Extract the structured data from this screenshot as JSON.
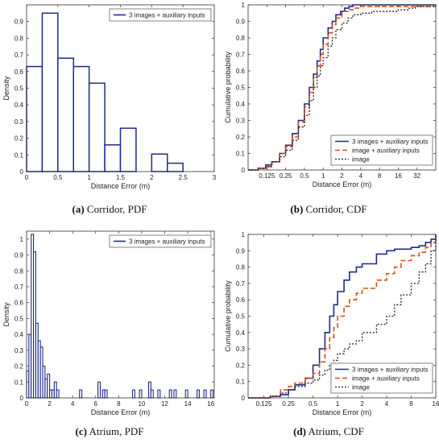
{
  "chart_data": [
    {
      "id": "a",
      "type": "histogram",
      "caption_letter": "(a)",
      "caption_text": "Corridor, PDF",
      "xlabel": "Distance Error (m)",
      "ylabel": "Density",
      "xlim": [
        0,
        3
      ],
      "ylim": [
        0,
        1.0
      ],
      "xticks": [
        0,
        0.5,
        1,
        1.5,
        2,
        2.5,
        3
      ],
      "xtick_labels": [
        "0",
        "0.5",
        "1",
        "1.5",
        "2",
        "2.5",
        "3"
      ],
      "yticks": [
        0,
        0.1,
        0.2,
        0.3,
        0.4,
        0.5,
        0.6,
        0.7,
        0.8,
        0.9
      ],
      "ytick_labels": [
        "0",
        "0.1",
        "0.2",
        "0.3",
        "0.4",
        "0.5",
        "0.6",
        "0.7",
        "0.8",
        "0.9"
      ],
      "bin_width": 0.25,
      "bin_starts": [
        0,
        0.25,
        0.5,
        0.75,
        1.0,
        1.25,
        1.5,
        1.75,
        2.0,
        2.25
      ],
      "values": [
        0.63,
        0.95,
        0.68,
        0.63,
        0.53,
        0.16,
        0.26,
        0.0,
        0.105,
        0.05
      ],
      "color": "#1f2a8c",
      "legend": [
        "3 images + auxiliary inputs"
      ],
      "legend_position": "top-right",
      "grid": false
    },
    {
      "id": "b",
      "type": "line",
      "xscale": "log2",
      "caption_letter": "(b)",
      "caption_text": "Corridor, CDF",
      "xlabel": "Distance Error (m)",
      "ylabel": "Cumulative probability",
      "xlim": [
        0.0625,
        64
      ],
      "ylim": [
        0,
        1.0
      ],
      "xticks": [
        0.125,
        0.25,
        0.5,
        1,
        2,
        4,
        8,
        16,
        32
      ],
      "xtick_labels": [
        "0.125",
        "0.25",
        "0.5",
        "1",
        "2",
        "4",
        "8",
        "16",
        "32"
      ],
      "yticks": [
        0,
        0.1,
        0.2,
        0.3,
        0.4,
        0.5,
        0.6,
        0.7,
        0.8,
        0.9,
        1
      ],
      "ytick_labels": [
        "0",
        "0.1",
        "0.2",
        "0.3",
        "0.4",
        "0.5",
        "0.6",
        "0.7",
        "0.8",
        "0.9",
        "1"
      ],
      "legend_position": "bottom-right",
      "grid": false,
      "series": [
        {
          "name": "3 images + auxiliary inputs",
          "color": "#1f2a8c",
          "dash": "",
          "width": 1.6,
          "x": [
            0.0625,
            0.09,
            0.12,
            0.15,
            0.2,
            0.25,
            0.32,
            0.4,
            0.5,
            0.6,
            0.7,
            0.8,
            0.9,
            1.0,
            1.2,
            1.4,
            1.6,
            1.9,
            2.2,
            2.6,
            3.0,
            64
          ],
          "y": [
            0.0,
            0.01,
            0.03,
            0.05,
            0.1,
            0.15,
            0.22,
            0.3,
            0.4,
            0.5,
            0.58,
            0.66,
            0.73,
            0.8,
            0.86,
            0.9,
            0.94,
            0.96,
            0.98,
            0.99,
            1.0,
            1.0
          ]
        },
        {
          "name": "image + auxiliary inputs",
          "color": "#d4501a",
          "dash": "6,3",
          "width": 1.6,
          "x": [
            0.0625,
            0.09,
            0.12,
            0.15,
            0.2,
            0.25,
            0.32,
            0.4,
            0.5,
            0.6,
            0.7,
            0.8,
            0.9,
            1.0,
            1.2,
            1.4,
            1.6,
            2.0,
            2.5,
            3.0,
            4.0,
            16,
            64
          ],
          "y": [
            0.0,
            0.01,
            0.02,
            0.05,
            0.1,
            0.14,
            0.2,
            0.29,
            0.38,
            0.47,
            0.56,
            0.63,
            0.7,
            0.76,
            0.83,
            0.88,
            0.92,
            0.96,
            0.97,
            0.98,
            0.99,
            0.99,
            0.99
          ]
        },
        {
          "name": "image",
          "color": "#222222",
          "dash": "2,2",
          "width": 1.3,
          "x": [
            0.0625,
            0.09,
            0.12,
            0.15,
            0.2,
            0.25,
            0.32,
            0.4,
            0.5,
            0.6,
            0.7,
            0.8,
            0.9,
            1.0,
            1.2,
            1.4,
            1.6,
            2.0,
            2.5,
            3.0,
            4.0,
            6.0,
            8.0,
            16,
            24,
            30,
            48,
            64
          ],
          "y": [
            0.0,
            0.01,
            0.02,
            0.05,
            0.08,
            0.12,
            0.18,
            0.26,
            0.33,
            0.42,
            0.5,
            0.57,
            0.63,
            0.68,
            0.75,
            0.8,
            0.85,
            0.89,
            0.92,
            0.94,
            0.95,
            0.96,
            0.96,
            0.97,
            0.98,
            0.99,
            0.99,
            1.0
          ]
        }
      ]
    },
    {
      "id": "c",
      "type": "histogram",
      "caption_letter": "(c)",
      "caption_text": "Atrium, PDF",
      "xlabel": "Distance Error (m)",
      "ylabel": "Density",
      "xlim": [
        0,
        16.3
      ],
      "ylim": [
        0,
        1.05
      ],
      "xticks": [
        0,
        2,
        4,
        6,
        8,
        10,
        12,
        14,
        16
      ],
      "xtick_labels": [
        "0",
        "2",
        "4",
        "6",
        "8",
        "10",
        "12",
        "14",
        "16"
      ],
      "yticks": [
        0,
        0.1,
        0.2,
        0.3,
        0.4,
        0.5,
        0.6,
        0.7,
        0.8,
        0.9,
        1
      ],
      "ytick_labels": [
        "0",
        "0.1",
        "0.2",
        "0.3",
        "0.4",
        "0.5",
        "0.6",
        "0.7",
        "0.8",
        "0.9",
        "1"
      ],
      "bin_width": 0.2,
      "bin_starts": [
        0,
        0.2,
        0.4,
        0.6,
        0.8,
        1.0,
        1.2,
        1.4,
        1.6,
        1.8,
        2.0,
        2.2,
        2.4,
        2.6,
        4.6,
        6.2,
        6.6,
        6.8,
        9.2,
        9.8,
        10.6,
        10.8,
        11.4,
        12.4,
        12.8,
        13.8,
        14.8,
        15.4,
        16.0
      ],
      "values": [
        0.17,
        0.4,
        1.03,
        0.92,
        0.47,
        0.36,
        0.32,
        0.2,
        0.12,
        0.15,
        0.05,
        0.05,
        0.1,
        0.05,
        0.05,
        0.1,
        0.05,
        0.05,
        0.05,
        0.05,
        0.1,
        0.05,
        0.05,
        0.05,
        0.05,
        0.05,
        0.05,
        0.05,
        0.05
      ],
      "color": "#1f2a8c",
      "legend": [
        "3 images + auxiliary inputs"
      ],
      "legend_position": "top-right",
      "grid": false
    },
    {
      "id": "d",
      "type": "line",
      "xscale": "log2",
      "caption_letter": "(d)",
      "caption_text": "Atrium, CDF",
      "xlabel": "Distance Error (m)",
      "ylabel": "Cumulative probability",
      "xlim": [
        0.08,
        16
      ],
      "ylim": [
        0,
        1.0
      ],
      "xticks": [
        0.125,
        0.25,
        0.5,
        1,
        2,
        4,
        8,
        16
      ],
      "xtick_labels": [
        "0.125",
        "0.25",
        "0.5",
        "1",
        "2",
        "4",
        "8",
        "16"
      ],
      "yticks": [
        0,
        0.1,
        0.2,
        0.3,
        0.4,
        0.5,
        0.6,
        0.7,
        0.8,
        0.9,
        1
      ],
      "ytick_labels": [
        "0",
        "0.1",
        "0.2",
        "0.3",
        "0.4",
        "0.5",
        "0.6",
        "0.7",
        "0.8",
        "0.9",
        "1"
      ],
      "legend_position": "bottom-right",
      "grid": false,
      "series": [
        {
          "name": "3 images + auxiliary inputs",
          "color": "#1f2a8c",
          "dash": "",
          "width": 1.6,
          "x": [
            0.08,
            0.15,
            0.2,
            0.25,
            0.3,
            0.4,
            0.5,
            0.6,
            0.7,
            0.8,
            0.9,
            1.0,
            1.2,
            1.4,
            1.7,
            2.0,
            3.0,
            4.0,
            5.0,
            6.0,
            8.0,
            10.0,
            12.0,
            14.0,
            16.0
          ],
          "y": [
            0.0,
            0.01,
            0.02,
            0.05,
            0.08,
            0.12,
            0.2,
            0.3,
            0.4,
            0.5,
            0.57,
            0.65,
            0.72,
            0.77,
            0.8,
            0.82,
            0.88,
            0.9,
            0.91,
            0.91,
            0.92,
            0.93,
            0.95,
            0.97,
            1.0
          ]
        },
        {
          "name": "image + auxiliary inputs",
          "color": "#d4501a",
          "dash": "6,3",
          "width": 1.6,
          "x": [
            0.08,
            0.15,
            0.2,
            0.25,
            0.3,
            0.4,
            0.5,
            0.6,
            0.7,
            0.8,
            0.9,
            1.0,
            1.2,
            1.4,
            1.7,
            2.0,
            3.0,
            4.0,
            5.0,
            6.0,
            8.0,
            10.0,
            12.0,
            14.0,
            16.0
          ],
          "y": [
            0.0,
            0.01,
            0.05,
            0.07,
            0.09,
            0.12,
            0.15,
            0.22,
            0.3,
            0.37,
            0.43,
            0.5,
            0.56,
            0.6,
            0.64,
            0.67,
            0.72,
            0.76,
            0.8,
            0.84,
            0.87,
            0.89,
            0.92,
            0.95,
            1.0
          ]
        },
        {
          "name": "image",
          "color": "#222222",
          "dash": "2,2",
          "width": 1.3,
          "x": [
            0.08,
            0.15,
            0.2,
            0.25,
            0.3,
            0.4,
            0.5,
            0.6,
            0.7,
            0.8,
            0.9,
            1.0,
            1.2,
            1.4,
            1.7,
            2.0,
            3.0,
            4.0,
            5.0,
            6.0,
            8.0,
            10.0,
            12.0,
            14.0,
            16.0
          ],
          "y": [
            0.0,
            0.01,
            0.03,
            0.05,
            0.07,
            0.09,
            0.11,
            0.14,
            0.17,
            0.2,
            0.23,
            0.27,
            0.3,
            0.33,
            0.35,
            0.4,
            0.45,
            0.5,
            0.57,
            0.63,
            0.7,
            0.77,
            0.82,
            0.9,
            1.0
          ]
        }
      ]
    }
  ]
}
